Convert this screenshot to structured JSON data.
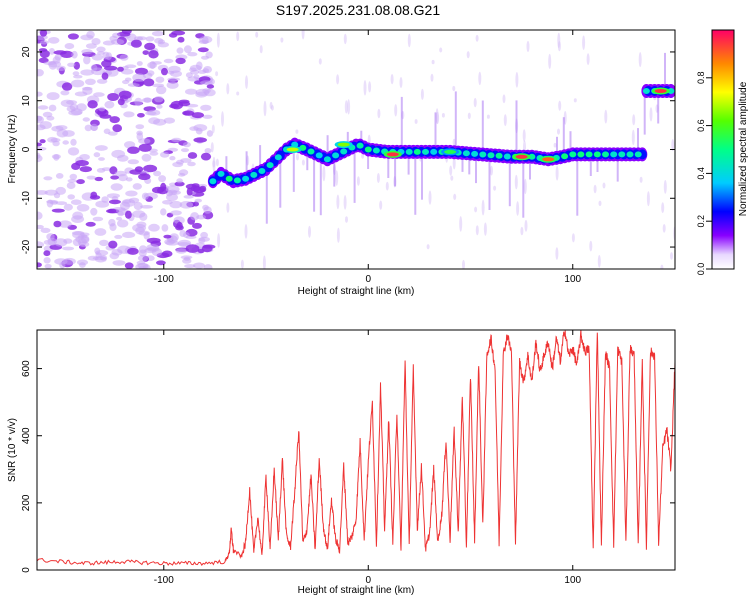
{
  "title": "S197.2025.231.08.08.G21",
  "chart_data": [
    {
      "type": "heatmap",
      "xlabel": "Height of straight line (km)",
      "ylabel": "Frequency (Hz)",
      "xlim": [
        -162,
        150
      ],
      "ylim": [
        -24.5,
        24.5
      ],
      "xticks": [
        -100,
        0,
        100
      ],
      "yticks": [
        -20,
        -10,
        0,
        10,
        20
      ],
      "ridge": [
        {
          "x": -76,
          "y": -6.5
        },
        {
          "x": -72,
          "y": -5
        },
        {
          "x": -66,
          "y": -6.5
        },
        {
          "x": -60,
          "y": -6
        },
        {
          "x": -55,
          "y": -5
        },
        {
          "x": -50,
          "y": -4
        },
        {
          "x": -45,
          "y": -2
        },
        {
          "x": -40,
          "y": 0
        },
        {
          "x": -36,
          "y": 1
        },
        {
          "x": -30,
          "y": 0
        },
        {
          "x": -25,
          "y": -1
        },
        {
          "x": -20,
          "y": -2
        },
        {
          "x": -15,
          "y": -1
        },
        {
          "x": -10,
          "y": 0
        },
        {
          "x": -5,
          "y": 1
        },
        {
          "x": 0,
          "y": 0
        },
        {
          "x": 10,
          "y": -0.5
        },
        {
          "x": 25,
          "y": -0.5
        },
        {
          "x": 40,
          "y": -0.5
        },
        {
          "x": 55,
          "y": -1
        },
        {
          "x": 70,
          "y": -1.5
        },
        {
          "x": 80,
          "y": -1.5
        },
        {
          "x": 88,
          "y": -2
        },
        {
          "x": 95,
          "y": -1.5
        },
        {
          "x": 100,
          "y": -1
        },
        {
          "x": 110,
          "y": -1
        },
        {
          "x": 120,
          "y": -1
        },
        {
          "x": 133,
          "y": -1
        },
        {
          "x": 135,
          "y": 12
        },
        {
          "x": 148,
          "y": 12
        }
      ],
      "peaks": [
        {
          "x": 12,
          "y": -1,
          "amp": 0.95
        },
        {
          "x": 75,
          "y": -1.5,
          "amp": 0.95
        },
        {
          "x": 88,
          "y": -2,
          "amp": 0.9
        },
        {
          "x": 143,
          "y": 12,
          "amp": 0.95
        },
        {
          "x": -37,
          "y": 0,
          "amp": 0.7
        },
        {
          "x": -12,
          "y": 1,
          "amp": 0.65
        },
        {
          "x": 40,
          "y": -0.5,
          "amp": 0.55
        }
      ],
      "noise_region": [
        -162,
        -77
      ],
      "colorbar": {
        "label": "Normalized spectral amplitude",
        "range": [
          0,
          1
        ],
        "ticks": [
          0.0,
          0.2,
          0.4,
          0.6,
          0.8
        ]
      }
    },
    {
      "type": "line",
      "xlabel": "Height of straight line (km)",
      "ylabel": "SNR (10 * v/v)",
      "xlim": [
        -162,
        150
      ],
      "ylim": [
        0,
        715
      ],
      "xticks": [
        -100,
        0,
        100
      ],
      "yticks": [
        0,
        200,
        400,
        600
      ],
      "color": "#ee3333",
      "series": [
        {
          "name": "SNR",
          "x": [
            -162,
            -150,
            -140,
            -130,
            -120,
            -110,
            -100,
            -90,
            -80,
            -70,
            -68,
            -67,
            -66,
            -62,
            -60,
            -58,
            -56,
            -54,
            -52,
            -50,
            -48,
            -46,
            -44,
            -42,
            -40,
            -38,
            -36,
            -34,
            -32,
            -30,
            -28,
            -26,
            -24,
            -22,
            -20,
            -18,
            -16,
            -14,
            -12,
            -10,
            -8,
            -6,
            -4,
            -2,
            0,
            2,
            4,
            6,
            8,
            10,
            12,
            14,
            16,
            18,
            20,
            22,
            24,
            26,
            28,
            30,
            32,
            34,
            36,
            38,
            40,
            42,
            44,
            46,
            48,
            50,
            52,
            54,
            56,
            58,
            60,
            62,
            64,
            66,
            68,
            70,
            72,
            74,
            76,
            78,
            80,
            82,
            84,
            86,
            88,
            90,
            92,
            94,
            96,
            98,
            100,
            102,
            104,
            106,
            108,
            110,
            112,
            114,
            116,
            118,
            120,
            122,
            124,
            126,
            128,
            130,
            132,
            134,
            136,
            138,
            140,
            142,
            144,
            146,
            148,
            150
          ],
          "y": [
            30,
            25,
            20,
            22,
            25,
            22,
            20,
            20,
            20,
            25,
            50,
            120,
            60,
            40,
            80,
            240,
            50,
            160,
            40,
            280,
            60,
            300,
            90,
            330,
            100,
            70,
            230,
            420,
            80,
            120,
            280,
            60,
            330,
            130,
            60,
            210,
            90,
            60,
            310,
            80,
            100,
            150,
            380,
            90,
            320,
            500,
            70,
            550,
            120,
            450,
            80,
            470,
            60,
            620,
            70,
            600,
            120,
            310,
            60,
            110,
            300,
            80,
            170,
            390,
            90,
            420,
            110,
            520,
            70,
            580,
            90,
            620,
            130,
            640,
            690,
            600,
            80,
            640,
            700,
            650,
            80,
            620,
            560,
            640,
            560,
            680,
            590,
            640,
            680,
            600,
            690,
            620,
            720,
            640,
            660,
            610,
            700,
            650,
            660,
            60,
            720,
            70,
            650,
            600,
            70,
            660,
            620,
            80,
            660,
            640,
            70,
            620,
            70,
            650,
            640,
            80,
            360,
            420,
            300,
            620
          ]
        }
      ]
    }
  ]
}
